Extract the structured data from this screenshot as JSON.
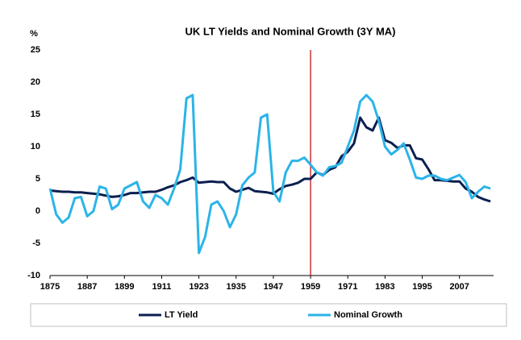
{
  "chart_data": {
    "type": "line",
    "title": "UK LT Yields and Nominal Growth (3Y MA)",
    "y_label": "%",
    "x": [
      1875,
      1877,
      1879,
      1881,
      1883,
      1885,
      1887,
      1889,
      1891,
      1893,
      1895,
      1897,
      1899,
      1901,
      1903,
      1905,
      1907,
      1909,
      1911,
      1913,
      1915,
      1917,
      1919,
      1921,
      1923,
      1925,
      1927,
      1929,
      1931,
      1933,
      1935,
      1937,
      1939,
      1941,
      1943,
      1945,
      1947,
      1949,
      1951,
      1953,
      1955,
      1957,
      1959,
      1961,
      1963,
      1965,
      1967,
      1969,
      1971,
      1973,
      1975,
      1977,
      1979,
      1981,
      1983,
      1985,
      1987,
      1989,
      1991,
      1993,
      1995,
      1997,
      1999,
      2001,
      2003,
      2005,
      2007,
      2009,
      2011,
      2013,
      2015,
      2017
    ],
    "series": [
      {
        "name": "LT Yield",
        "color": "#0b1f4f",
        "values": [
          3.2,
          3.1,
          3.0,
          3.0,
          2.9,
          2.9,
          2.8,
          2.7,
          2.6,
          2.4,
          2.2,
          2.3,
          2.5,
          2.8,
          2.8,
          2.9,
          3.0,
          3.0,
          3.3,
          3.7,
          4.0,
          4.5,
          4.8,
          5.2,
          4.4,
          4.5,
          4.6,
          4.5,
          4.5,
          3.5,
          3.0,
          3.3,
          3.6,
          3.1,
          3.0,
          2.9,
          2.7,
          3.4,
          3.9,
          4.1,
          4.4,
          5.0,
          5.0,
          6.0,
          5.6,
          6.4,
          6.8,
          8.5,
          9.2,
          10.5,
          14.5,
          13.0,
          12.5,
          14.5,
          11.0,
          10.6,
          9.8,
          10.2,
          10.2,
          8.2,
          8.0,
          6.5,
          4.8,
          4.8,
          4.7,
          4.6,
          4.6,
          3.5,
          3.0,
          2.2,
          1.8,
          1.5
        ]
      },
      {
        "name": "Nominal Growth",
        "color": "#2bb4e8",
        "values": [
          3.5,
          -0.5,
          -1.8,
          -1.0,
          2.0,
          2.2,
          -0.8,
          0.0,
          3.8,
          3.5,
          0.3,
          1.0,
          3.5,
          4.0,
          4.5,
          1.5,
          0.5,
          2.5,
          2.0,
          1.0,
          3.5,
          6.5,
          17.5,
          18.0,
          -6.5,
          -4.0,
          1.0,
          1.5,
          0.0,
          -2.5,
          -0.5,
          4.0,
          5.2,
          6.0,
          14.5,
          15.0,
          3.0,
          1.5,
          6.0,
          7.8,
          7.8,
          8.3,
          7.2,
          6.0,
          5.5,
          6.8,
          7.0,
          7.5,
          10.0,
          12.5,
          17.0,
          18.0,
          17.0,
          14.0,
          10.0,
          8.8,
          9.5,
          10.5,
          8.0,
          5.2,
          5.0,
          5.5,
          5.5,
          5.0,
          4.8,
          5.2,
          5.6,
          4.5,
          2.0,
          3.0,
          3.8,
          3.5
        ]
      }
    ],
    "xlim": [
      1875,
      2018
    ],
    "xticks": [
      1875,
      1887,
      1899,
      1911,
      1923,
      1935,
      1947,
      1959,
      1971,
      1983,
      1995,
      2007
    ],
    "ylim": [
      -10,
      25
    ],
    "yticks": [
      -10,
      -5,
      0,
      5,
      10,
      15,
      20,
      25
    ],
    "vline": {
      "x": 1959,
      "color": "#c00000"
    },
    "legend": "bottom"
  }
}
